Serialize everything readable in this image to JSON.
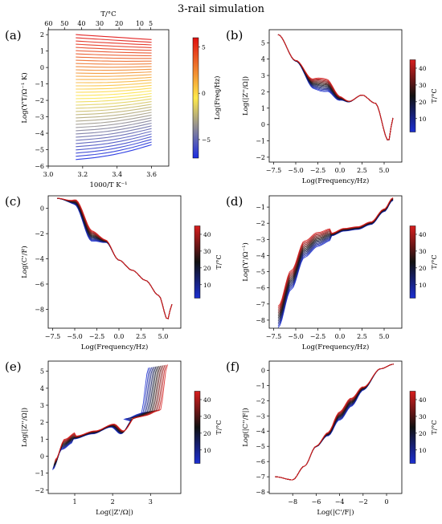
{
  "figure": {
    "title": "3-rail simulation"
  },
  "colors": {
    "hot": "#d81e1e",
    "mid": "#111111",
    "cold": "#1c2fd2",
    "heat_low": "#1a2be0",
    "heat_mid": "#ffe94a",
    "heat_high": "#e01010"
  },
  "chart_data": [
    {
      "id": "a",
      "panel_label": "(a)",
      "type": "line",
      "xlabel": "1000/T K⁻¹",
      "ylabel": "Log(Y'T/Ω⁻¹ K)",
      "top_axis_label": "T/°C",
      "xlim": [
        3.0,
        3.7
      ],
      "ylim": [
        -6,
        2.3
      ],
      "xticks": [
        3.0,
        3.2,
        3.4,
        3.6
      ],
      "yticks": [
        -6,
        -5,
        -4,
        -3,
        -2,
        -1,
        0,
        1,
        2
      ],
      "top_ticks_celsius": [
        60,
        50,
        40,
        30,
        20,
        10,
        5
      ],
      "colorbar": {
        "label": "Log(Freq/Hz)",
        "ticks": [
          5,
          0,
          -5
        ],
        "range": [
          -7,
          6
        ],
        "colormap": "blue-yellow-red"
      },
      "series_summary": {
        "x_range": [
          3.16,
          3.6
        ],
        "y_start_range": [
          -5.6,
          2.0
        ],
        "y_end_range": [
          -4.7,
          1.7
        ],
        "line_count": 40
      }
    },
    {
      "id": "b",
      "panel_label": "(b)",
      "type": "line",
      "xlabel": "Log(Frequency/Hz)",
      "ylabel": "Log(|Z''/Ω|)",
      "xlim": [
        -8,
        7
      ],
      "ylim": [
        -2.3,
        5.8
      ],
      "xticks": [
        -7.5,
        -5.0,
        -2.5,
        0.0,
        2.5,
        5.0
      ],
      "yticks": [
        -2,
        -1,
        0,
        1,
        2,
        3,
        4,
        5
      ],
      "colorbar": {
        "label": "T/°C",
        "ticks": [
          40,
          30,
          20,
          10
        ],
        "range": [
          2,
          45
        ]
      },
      "series_summary": {
        "x": [
          -7,
          -5,
          -3,
          -1.5,
          0,
          1,
          2.5,
          4,
          5.5,
          6
        ],
        "y": [
          5.5,
          3.9,
          2.5,
          2.4,
          1.6,
          1.4,
          1.8,
          1.3,
          -1.0,
          0.4
        ]
      }
    },
    {
      "id": "c",
      "panel_label": "(c)",
      "type": "line",
      "xlabel": "Log(Frequency/Hz)",
      "ylabel": "Log(C'/F)",
      "xlim": [
        -8,
        7
      ],
      "ylim": [
        -9.5,
        1.0
      ],
      "xticks": [
        -7.5,
        -5.0,
        -2.5,
        0.0,
        2.5,
        5.0
      ],
      "yticks": [
        -8,
        -6,
        -4,
        -2,
        0
      ],
      "colorbar": {
        "label": "T/°C",
        "ticks": [
          40,
          30,
          20,
          10
        ],
        "range": [
          2,
          45
        ]
      },
      "series_summary": {
        "x": [
          -7,
          -5,
          -3,
          -1.5,
          0,
          1.5,
          3,
          4.5,
          5.5,
          6
        ],
        "y": [
          0.8,
          0.5,
          -2.2,
          -2.6,
          -4.1,
          -4.9,
          -5.7,
          -6.9,
          -8.8,
          -7.6
        ]
      }
    },
    {
      "id": "d",
      "panel_label": "(d)",
      "type": "line",
      "xlabel": "Log(Frequency/Hz)",
      "ylabel": "Log(Y'/Ω⁻¹)",
      "xlim": [
        -8,
        7
      ],
      "ylim": [
        -8.5,
        -0.3
      ],
      "xticks": [
        -7.5,
        -5.0,
        -2.5,
        0.0,
        2.5,
        5.0
      ],
      "yticks": [
        -8,
        -7,
        -6,
        -5,
        -4,
        -3,
        -2,
        -1
      ],
      "colorbar": {
        "label": "T/°C",
        "ticks": [
          40,
          30,
          20,
          10
        ],
        "range": [
          2,
          45
        ]
      },
      "series_summary": {
        "x": [
          -7,
          -5.5,
          -4,
          -2.5,
          -1,
          0.5,
          2,
          3.5,
          5,
          6
        ],
        "y": [
          -7.8,
          -5.5,
          -3.6,
          -3.0,
          -2.7,
          -2.4,
          -2.3,
          -2.0,
          -1.2,
          -0.5
        ]
      }
    },
    {
      "id": "e",
      "panel_label": "(e)",
      "type": "line",
      "xlabel": "Log(|Z'/Ω|)",
      "ylabel": "Log(|Z''/Ω|)",
      "xlim": [
        0.3,
        3.8
      ],
      "ylim": [
        -2.2,
        5.6
      ],
      "xticks": [
        1,
        2,
        3
      ],
      "yticks": [
        -2,
        -1,
        0,
        1,
        2,
        3,
        4,
        5
      ],
      "colorbar": {
        "label": "T/°C",
        "ticks": [
          40,
          30,
          20,
          10
        ],
        "range": [
          2,
          45
        ]
      },
      "series_summary": {
        "x": [
          0.45,
          0.7,
          1.0,
          1.5,
          2.0,
          2.25,
          2.6,
          3.0,
          3.2
        ],
        "y": [
          -0.5,
          0.7,
          1.1,
          1.4,
          1.8,
          1.4,
          2.3,
          2.6,
          5.3
        ]
      }
    },
    {
      "id": "f",
      "panel_label": "(f)",
      "type": "line",
      "xlabel": "Log(|C'/F|)",
      "ylabel": "Log(|C''/F|)",
      "xlim": [
        -10,
        1.3
      ],
      "ylim": [
        -8.1,
        0.6
      ],
      "xticks": [
        -8,
        -6,
        -4,
        -2,
        0
      ],
      "yticks": [
        -8,
        -7,
        -6,
        -5,
        -4,
        -3,
        -2,
        -1,
        0
      ],
      "colorbar": {
        "label": "T/°C",
        "ticks": [
          40,
          30,
          20,
          10
        ],
        "range": [
          2,
          45
        ]
      },
      "series_summary": {
        "x": [
          -9.5,
          -8,
          -7,
          -6,
          -5,
          -4,
          -3,
          -2,
          -0.5,
          0.6
        ],
        "y": [
          -7.0,
          -7.2,
          -6.3,
          -5.0,
          -4.2,
          -3.0,
          -2.1,
          -1.2,
          0.1,
          0.4
        ]
      }
    }
  ]
}
